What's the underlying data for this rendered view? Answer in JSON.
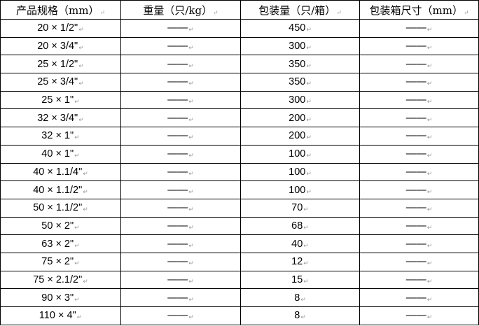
{
  "table": {
    "headers": [
      "产品规格（mm）",
      "重量（只/kg）",
      "包装量（只/箱）",
      "包装箱尺寸（mm）"
    ],
    "rows": [
      [
        "20 × 1/2\"",
        "——",
        "450",
        "——"
      ],
      [
        "20 × 3/4\"",
        "——",
        "300",
        "——"
      ],
      [
        "25 × 1/2\"",
        "——",
        "350",
        "——"
      ],
      [
        "25 × 3/4\"",
        "——",
        "350",
        "——"
      ],
      [
        "25 × 1\"",
        "——",
        "300",
        "——"
      ],
      [
        "32 × 3/4\"",
        "——",
        "200",
        "——"
      ],
      [
        "32 × 1\"",
        "——",
        "200",
        "——"
      ],
      [
        "40 × 1\"",
        "——",
        "100",
        "——"
      ],
      [
        "40 × 1.1/4\"",
        "——",
        "100",
        "——"
      ],
      [
        "40 × 1.1/2\"",
        "——",
        "100",
        "——"
      ],
      [
        "50 × 1.1/2\"",
        "——",
        "70",
        "——"
      ],
      [
        "50 × 2\"",
        "——",
        "68",
        "——"
      ],
      [
        "63 × 2\"",
        "——",
        "40",
        "——"
      ],
      [
        "75 × 2\"",
        "——",
        "12",
        "——"
      ],
      [
        "75 × 2.1/2\"",
        "——",
        "15",
        "——"
      ],
      [
        "90 × 3\"",
        "——",
        "8",
        "——"
      ],
      [
        "110 × 4\"",
        "——",
        "8",
        "——"
      ]
    ]
  }
}
